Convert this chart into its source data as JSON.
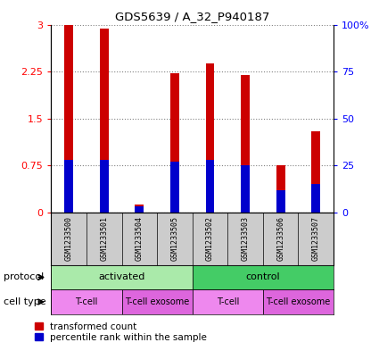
{
  "title": "GDS5639 / A_32_P940187",
  "samples": [
    "GSM1233500",
    "GSM1233501",
    "GSM1233504",
    "GSM1233505",
    "GSM1233502",
    "GSM1233503",
    "GSM1233506",
    "GSM1233507"
  ],
  "red_values": [
    3.0,
    2.93,
    0.13,
    2.22,
    2.38,
    2.2,
    0.75,
    1.3
  ],
  "blue_values_pct": [
    28,
    28,
    3,
    27,
    28,
    25,
    12,
    15
  ],
  "ylim_left": [
    0,
    3.0
  ],
  "ylim_right": [
    0,
    100
  ],
  "yticks_left": [
    0,
    0.75,
    1.5,
    2.25,
    3
  ],
  "ytick_labels_left": [
    "0",
    "0.75",
    "1.5",
    "2.25",
    "3"
  ],
  "yticks_right": [
    0,
    25,
    50,
    75,
    100
  ],
  "ytick_labels_right": [
    "0",
    "25",
    "50",
    "75",
    "100%"
  ],
  "protocol_groups": [
    {
      "label": "activated",
      "start": 0,
      "end": 4,
      "color": "#AAEAAA"
    },
    {
      "label": "control",
      "start": 4,
      "end": 8,
      "color": "#44CC66"
    }
  ],
  "cell_type_groups": [
    {
      "label": "T-cell",
      "start": 0,
      "end": 2,
      "color": "#EE88EE"
    },
    {
      "label": "T-cell exosome",
      "start": 2,
      "end": 4,
      "color": "#DD66DD"
    },
    {
      "label": "T-cell",
      "start": 4,
      "end": 6,
      "color": "#EE88EE"
    },
    {
      "label": "T-cell exosome",
      "start": 6,
      "end": 8,
      "color": "#DD66DD"
    }
  ],
  "bar_width": 0.25,
  "red_color": "#CC0000",
  "blue_color": "#0000CC",
  "bg_gray": "#CCCCCC",
  "legend_red": "transformed count",
  "legend_blue": "percentile rank within the sample"
}
